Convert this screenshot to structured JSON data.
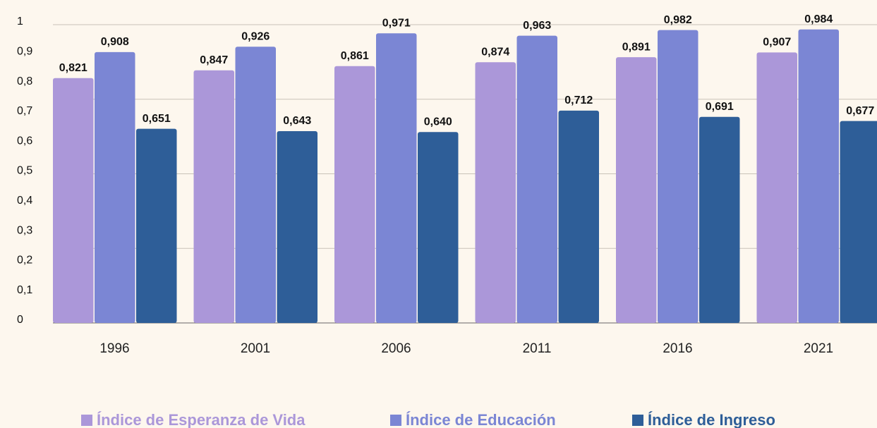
{
  "chart_data": {
    "type": "bar",
    "categories": [
      "1996",
      "2001",
      "2006",
      "2011",
      "2016",
      "2021"
    ],
    "series": [
      {
        "name": "Índice de Esperanza de Vida",
        "color": "#ab97d9",
        "values": [
          0.821,
          0.847,
          0.861,
          0.874,
          0.891,
          0.907
        ],
        "value_labels": [
          "0,821",
          "0,847",
          "0,861",
          "0,874",
          "0,891",
          "0,907"
        ]
      },
      {
        "name": "Índice de Educación",
        "color": "#7b86d4",
        "values": [
          0.908,
          0.926,
          0.971,
          0.963,
          0.982,
          0.984
        ],
        "value_labels": [
          "0,908",
          "0,926",
          "0,971",
          "0,963",
          "0,982",
          "0,984"
        ]
      },
      {
        "name": "Índice de Ingreso",
        "color": "#2e5e98",
        "values": [
          0.651,
          0.643,
          0.64,
          0.712,
          0.691,
          0.677
        ],
        "value_labels": [
          "0,651",
          "0,643",
          "0,640",
          "0,712",
          "0,691",
          "0,677"
        ]
      }
    ],
    "ylim": [
      0,
      1
    ],
    "yticks": [
      0,
      {
        "value": 0.1,
        "label": "0,1"
      },
      {
        "value": 0.2,
        "label": "0,2"
      },
      {
        "value": 0.3,
        "label": "0,3"
      },
      {
        "value": 0.4,
        "label": "0,4"
      },
      {
        "value": 0.5,
        "label": "0,5"
      },
      {
        "value": 0.6,
        "label": "0,6"
      },
      {
        "value": 0.7,
        "label": "0,7"
      },
      {
        "value": 0.8,
        "label": "0,8"
      },
      {
        "value": 0.9,
        "label": "0,9"
      },
      1
    ],
    "grid_lines": [
      0,
      0.25,
      0.5,
      0.75,
      1
    ],
    "legend": "bottom"
  }
}
